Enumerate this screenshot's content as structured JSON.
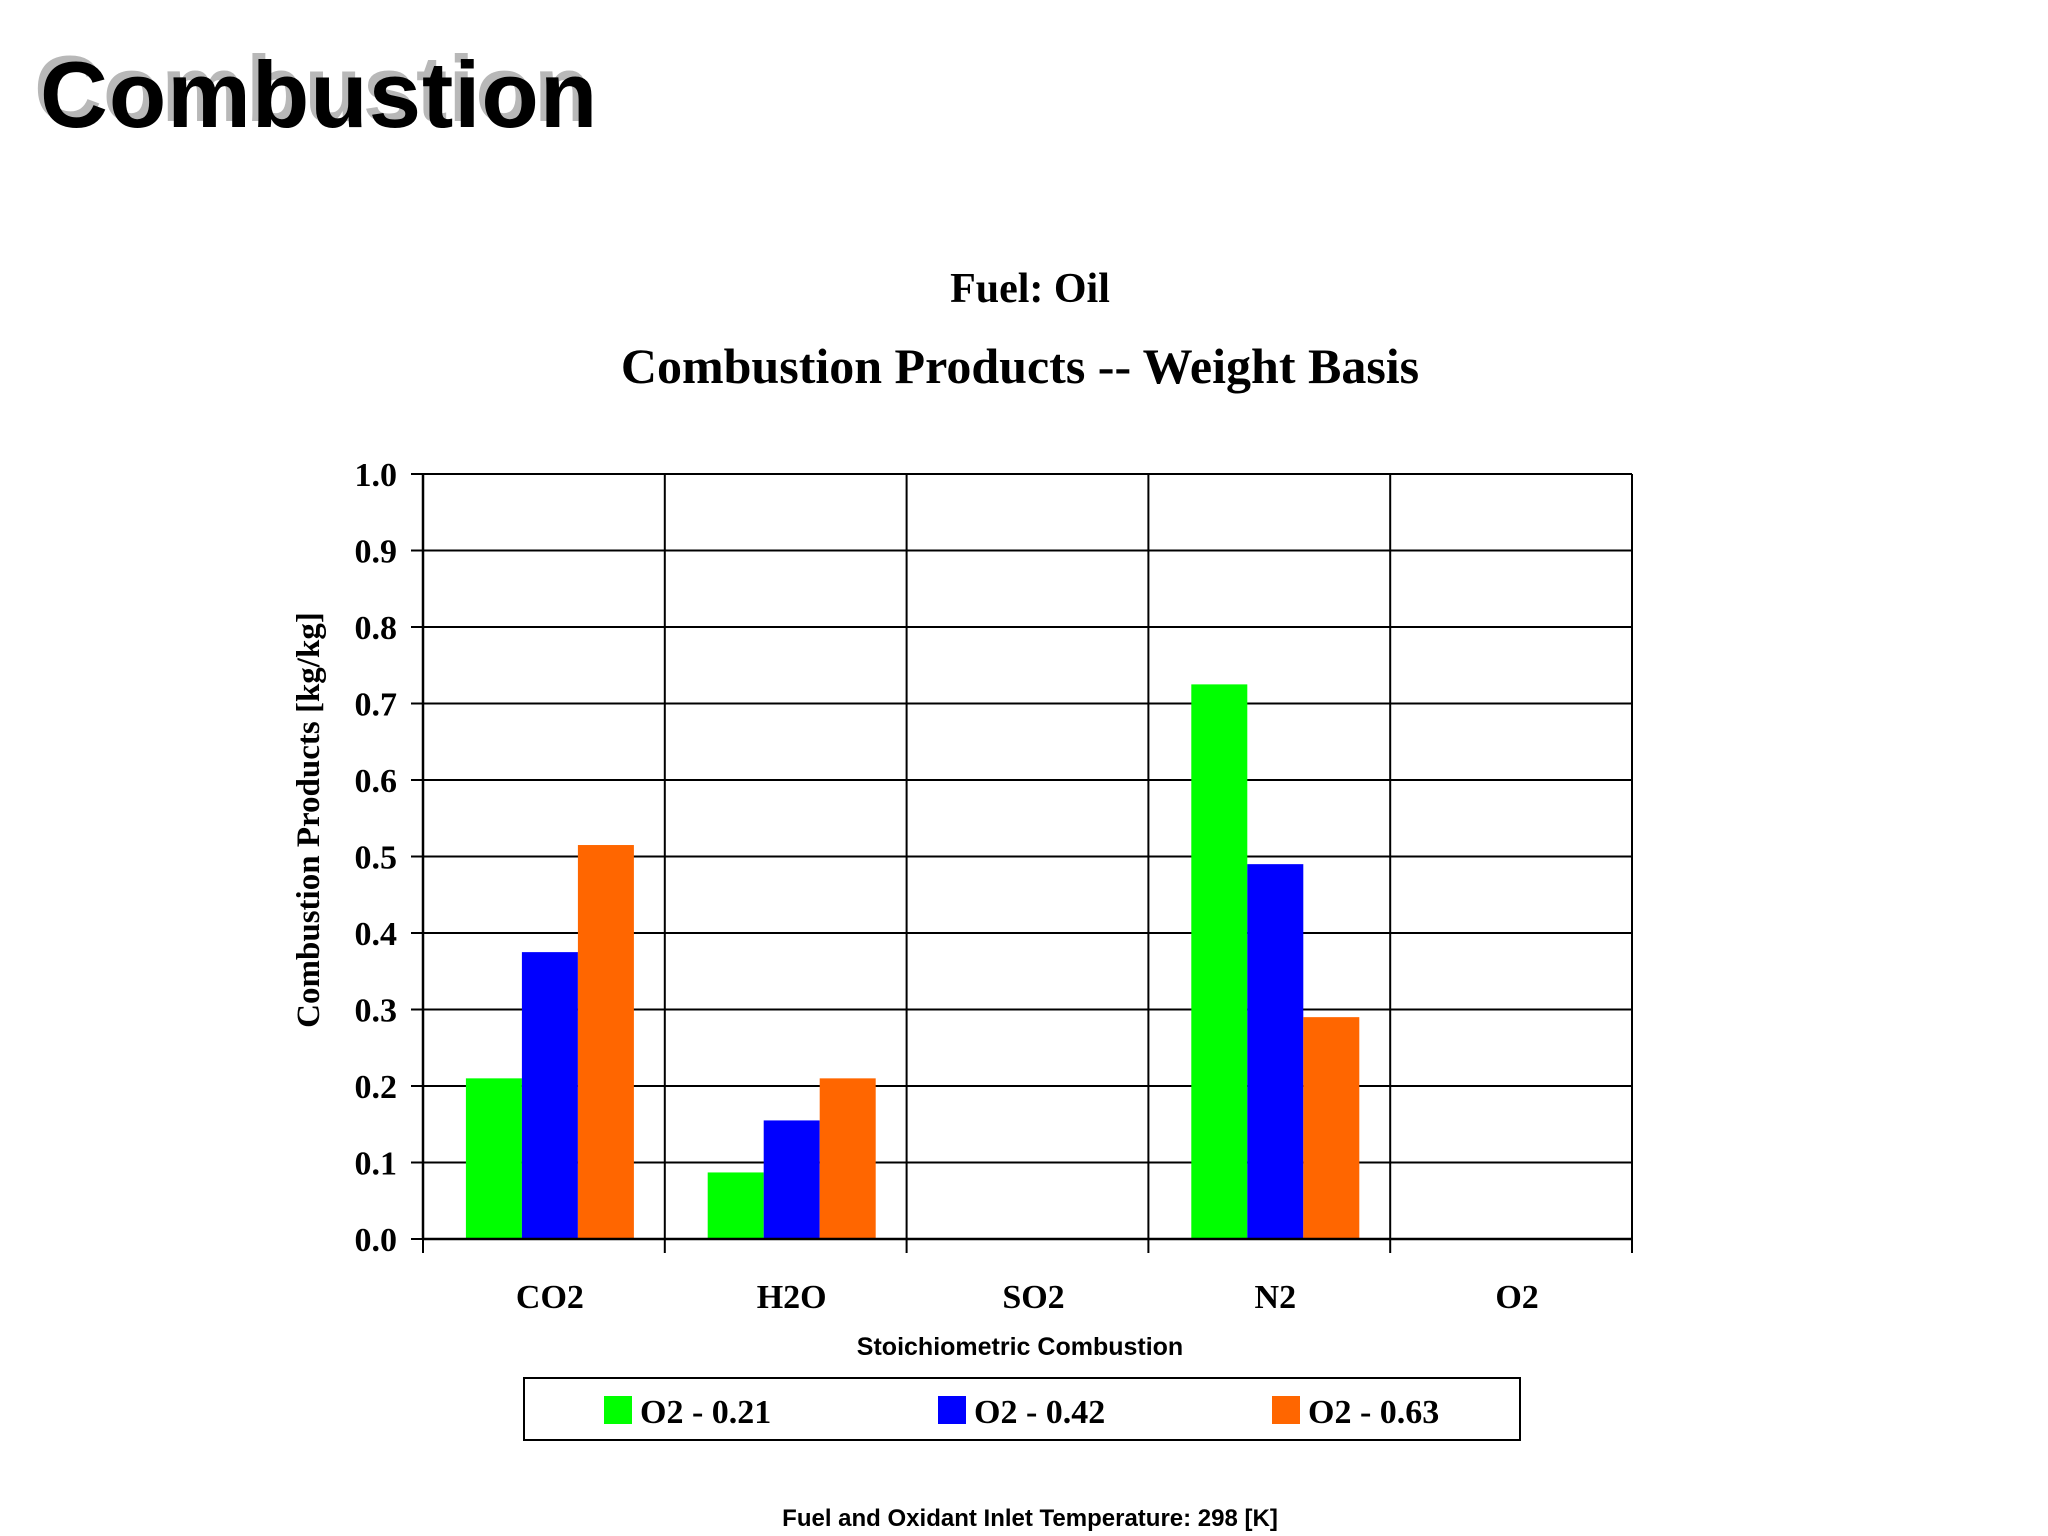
{
  "slide": {
    "title": "Combustion"
  },
  "chart_data": {
    "type": "bar",
    "title": "Fuel:  Oil",
    "subtitle": "Combustion Products -- Weight Basis",
    "xlabel": "Stoichiometric Combustion",
    "ylabel": "Combustion Products [kg/kg]",
    "footnote": "Fuel and Oxidant Inlet Temperature:  298 [K]",
    "categories": [
      "CO2",
      "H2O",
      "SO2",
      "N2",
      "O2"
    ],
    "ylim": [
      0,
      1
    ],
    "yticks": [
      "0.0",
      "0.1",
      "0.2",
      "0.3",
      "0.4",
      "0.5",
      "0.6",
      "0.7",
      "0.8",
      "0.9",
      "1.0"
    ],
    "grid": true,
    "legend_position": "bottom",
    "series": [
      {
        "name": "O2 - 0.21",
        "color": "#00ff00",
        "values": [
          0.21,
          0.087,
          0,
          0.725,
          0
        ]
      },
      {
        "name": "O2 - 0.42",
        "color": "#0000ff",
        "values": [
          0.375,
          0.155,
          0,
          0.49,
          0
        ]
      },
      {
        "name": "O2 - 0.63",
        "color": "#ff6600",
        "values": [
          0.515,
          0.21,
          0,
          0.29,
          0
        ]
      }
    ]
  }
}
